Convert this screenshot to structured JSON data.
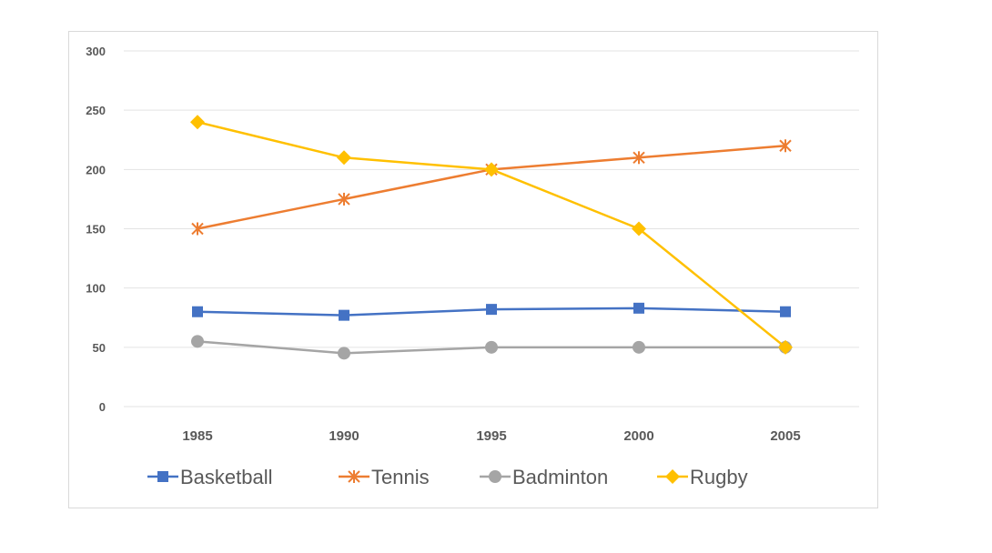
{
  "chart_data": {
    "type": "line",
    "title": "",
    "xlabel": "",
    "ylabel": "",
    "ylim": [
      0,
      300
    ],
    "yticks": [
      0,
      50,
      100,
      150,
      200,
      250,
      300
    ],
    "categories": [
      "1985",
      "1990",
      "1995",
      "2000",
      "2005"
    ],
    "grid": true,
    "legend_position": "bottom",
    "series": [
      {
        "name": "Basketball",
        "color": "#4472c4",
        "marker": "square",
        "values": [
          80,
          77,
          82,
          83,
          80
        ]
      },
      {
        "name": "Tennis",
        "color": "#ed7d31",
        "marker": "asterisk",
        "values": [
          150,
          175,
          200,
          210,
          220
        ]
      },
      {
        "name": "Badminton",
        "color": "#a5a5a5",
        "marker": "circle",
        "values": [
          55,
          45,
          50,
          50,
          50
        ]
      },
      {
        "name": "Rugby",
        "color": "#ffc000",
        "marker": "diamond",
        "values": [
          240,
          210,
          200,
          150,
          50
        ]
      }
    ]
  }
}
